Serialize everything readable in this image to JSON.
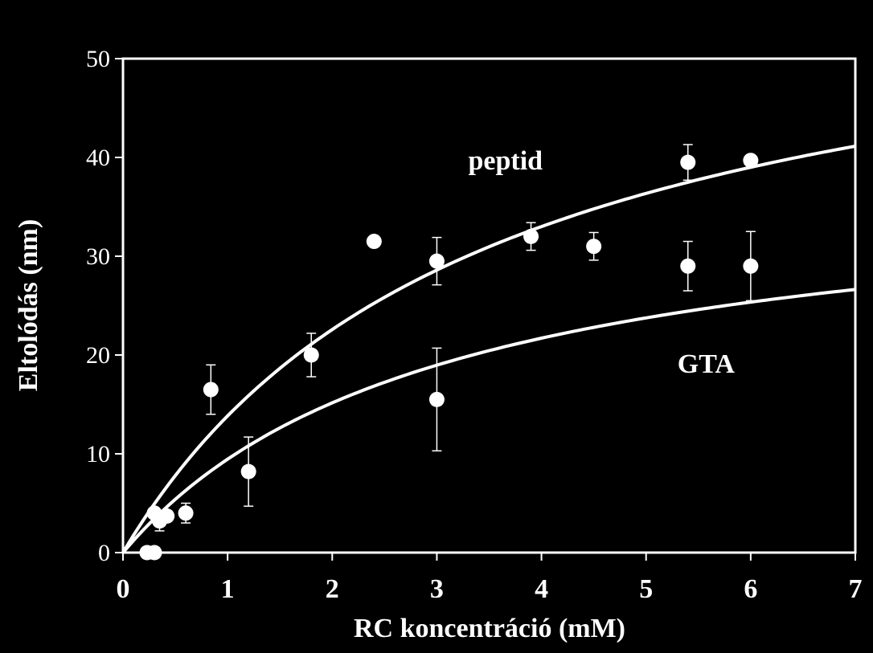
{
  "chart_data": {
    "type": "scatter",
    "title": "",
    "xlabel": "RC koncentráció (mM)",
    "ylabel": "Eltolódás (nm)",
    "xlim": [
      0,
      7
    ],
    "ylim": [
      0,
      50
    ],
    "xticks": [
      "0",
      "1",
      "2",
      "3",
      "4",
      "5",
      "6",
      "7"
    ],
    "yticks": [
      "0",
      "10",
      "20",
      "30",
      "40",
      "50"
    ],
    "grid": false,
    "colors": {
      "background": "#000000",
      "foreground": "#ffffff"
    },
    "points": [
      {
        "x": 0.23,
        "y": 0,
        "err": 0
      },
      {
        "x": 0.3,
        "y": 0,
        "err": 0
      },
      {
        "x": 0.3,
        "y": 4,
        "err": 0
      },
      {
        "x": 0.35,
        "y": 3.2,
        "err": 1
      },
      {
        "x": 0.42,
        "y": 3.7,
        "err": 0.5
      },
      {
        "x": 0.6,
        "y": 4,
        "err": 1
      },
      {
        "x": 0.84,
        "y": 16.5,
        "err": 2.5
      },
      {
        "x": 1.2,
        "y": 8.2,
        "err": 3.5
      },
      {
        "x": 1.8,
        "y": 20,
        "err": 2.2
      },
      {
        "x": 2.4,
        "y": 31.5,
        "err": 0
      },
      {
        "x": 3.0,
        "y": 29.5,
        "err": 2.4
      },
      {
        "x": 3.0,
        "y": 15.5,
        "err": 5.2
      },
      {
        "x": 3.9,
        "y": 32,
        "err": 1.4
      },
      {
        "x": 4.5,
        "y": 31,
        "err": 1.4
      },
      {
        "x": 5.4,
        "y": 39.5,
        "err": 1.8
      },
      {
        "x": 5.4,
        "y": 29,
        "err": 2.5
      },
      {
        "x": 6.0,
        "y": 39.7,
        "err": 0
      },
      {
        "x": 6.0,
        "y": 29,
        "err": 3.5
      }
    ],
    "fits": [
      {
        "name": "peptid",
        "vmax": 61.3,
        "km": 3.43,
        "label_x": 3.3,
        "label_y": 38.8
      },
      {
        "name": "GTA",
        "vmax": 38.2,
        "km": 3.04,
        "label_x": 5.3,
        "label_y": 18.2
      }
    ]
  }
}
